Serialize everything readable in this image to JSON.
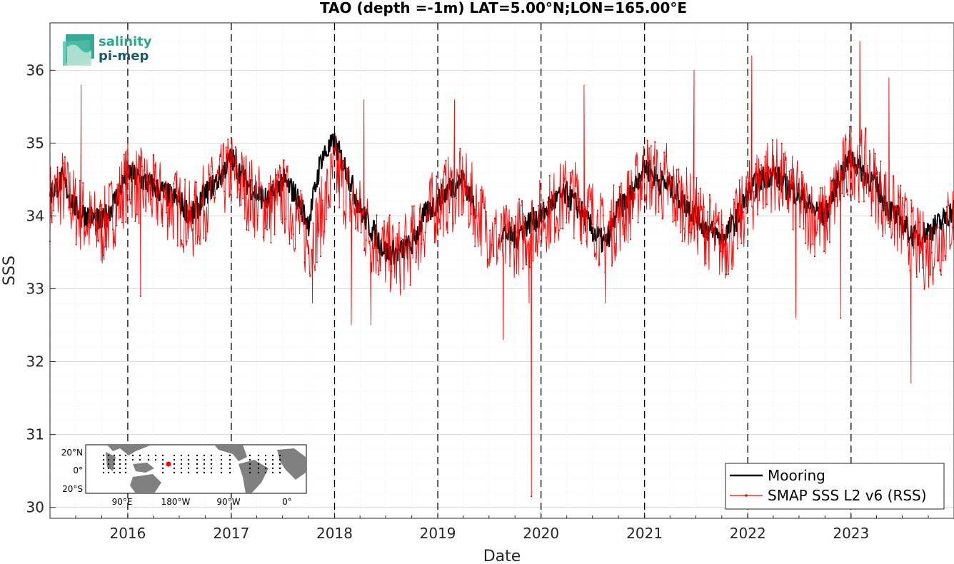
{
  "chart_data": {
    "type": "line",
    "title": "TAO (depth =-1m) LAT=5.00°N;LON=165.00°E",
    "xlabel": "Date",
    "ylabel": "SSS",
    "xlim": [
      "2015-04-01",
      "2023-12-31"
    ],
    "ylim": [
      29.85,
      36.65
    ],
    "x_ticks": [
      "2016",
      "2017",
      "2018",
      "2019",
      "2020",
      "2021",
      "2022",
      "2023"
    ],
    "y_ticks": [
      "30",
      "31",
      "32",
      "33",
      "34",
      "35",
      "36"
    ],
    "year_markers": [
      "2016-01-01",
      "2017-01-01",
      "2018-01-01",
      "2019-01-01",
      "2020-01-01",
      "2021-01-01",
      "2022-01-01",
      "2023-01-01"
    ],
    "grid": true,
    "legend_position": "bottom-right",
    "series": [
      {
        "name": "Mooring",
        "color": "#000000",
        "segments": [
          {
            "x": [
              "2015-04-01",
              "2015-05-15",
              "2015-07-01",
              "2015-08-15",
              "2015-10-01",
              "2015-11-15",
              "2016-01-01",
              "2016-02-15",
              "2016-04-01",
              "2016-05-15",
              "2016-07-01",
              "2016-08-15",
              "2016-10-01",
              "2016-11-15",
              "2017-01-01",
              "2017-02-15",
              "2017-04-01",
              "2017-05-15",
              "2017-07-01",
              "2017-08-15",
              "2017-10-01",
              "2017-11-15",
              "2018-01-01",
              "2018-02-15",
              "2018-04-01",
              "2018-05-15",
              "2018-07-01",
              "2018-08-15",
              "2018-10-01",
              "2018-11-15",
              "2019-01-01",
              "2019-02-15",
              "2019-04-01",
              "2019-05-15"
            ],
            "y": [
              34.3,
              34.5,
              34.1,
              34.0,
              33.9,
              34.2,
              34.6,
              34.5,
              34.4,
              34.3,
              34.2,
              34.0,
              34.3,
              34.5,
              34.8,
              34.5,
              34.3,
              34.2,
              34.5,
              34.3,
              33.9,
              34.8,
              35.0,
              34.6,
              34.1,
              33.8,
              33.5,
              33.5,
              33.6,
              34.0,
              34.2,
              34.4,
              34.5,
              34.1
            ]
          },
          {
            "x": [
              "2019-08-15",
              "2019-10-01",
              "2019-11-15",
              "2020-01-01",
              "2020-02-15",
              "2020-04-01",
              "2020-05-15",
              "2020-07-01",
              "2020-08-15",
              "2020-10-01",
              "2020-11-15",
              "2021-01-01",
              "2021-02-15",
              "2021-04-01",
              "2021-05-15",
              "2021-07-01",
              "2021-08-15",
              "2021-10-01",
              "2021-11-15",
              "2022-01-01",
              "2022-02-15",
              "2022-04-01",
              "2022-05-15",
              "2022-07-01",
              "2022-08-15",
              "2022-10-01",
              "2022-11-15",
              "2023-01-01",
              "2023-02-15",
              "2023-04-01",
              "2023-05-15",
              "2023-07-01",
              "2023-08-15",
              "2023-10-01",
              "2023-11-15",
              "2023-12-31"
            ],
            "y": [
              33.8,
              33.7,
              33.9,
              34.0,
              34.2,
              34.3,
              34.1,
              33.8,
              33.6,
              34.1,
              34.3,
              34.7,
              34.5,
              34.4,
              34.2,
              34.0,
              33.8,
              33.7,
              33.9,
              34.3,
              34.5,
              34.6,
              34.4,
              34.3,
              34.1,
              34.0,
              34.5,
              34.8,
              34.6,
              34.4,
              34.1,
              33.9,
              33.7,
              33.8,
              33.9,
              34.1
            ]
          }
        ]
      },
      {
        "name": "SMAP SSS L2 v6 (RSS)",
        "color": "#ff0000",
        "x": [
          "2015-04-01",
          "2015-05-15",
          "2015-07-01",
          "2015-08-15",
          "2015-10-01",
          "2015-11-15",
          "2016-01-01",
          "2016-02-15",
          "2016-04-01",
          "2016-05-15",
          "2016-07-01",
          "2016-08-15",
          "2016-10-01",
          "2016-11-15",
          "2017-01-01",
          "2017-02-15",
          "2017-04-01",
          "2017-05-15",
          "2017-07-01",
          "2017-08-15",
          "2017-10-01",
          "2017-11-15",
          "2018-01-01",
          "2018-02-15",
          "2018-04-01",
          "2018-05-15",
          "2018-07-01",
          "2018-08-15",
          "2018-10-01",
          "2018-11-15",
          "2019-01-01",
          "2019-02-15",
          "2019-04-01",
          "2019-05-15",
          "2019-07-01",
          "2019-08-15",
          "2019-10-01",
          "2019-11-15",
          "2020-01-01",
          "2020-02-15",
          "2020-04-01",
          "2020-05-15",
          "2020-07-01",
          "2020-08-15",
          "2020-10-01",
          "2020-11-15",
          "2021-01-01",
          "2021-02-15",
          "2021-04-01",
          "2021-05-15",
          "2021-07-01",
          "2021-08-15",
          "2021-10-01",
          "2021-11-15",
          "2022-01-01",
          "2022-02-15",
          "2022-04-01",
          "2022-05-15",
          "2022-07-01",
          "2022-08-15",
          "2022-10-01",
          "2022-11-15",
          "2023-01-01",
          "2023-02-15",
          "2023-04-01",
          "2023-05-15",
          "2023-07-01",
          "2023-08-15",
          "2023-10-01",
          "2023-11-15",
          "2023-12-31"
        ],
        "y": [
          34.2,
          34.4,
          34.1,
          33.9,
          33.8,
          34.1,
          34.5,
          34.4,
          34.3,
          34.2,
          34.1,
          33.9,
          34.2,
          34.4,
          34.6,
          34.4,
          34.2,
          34.1,
          34.3,
          34.0,
          33.6,
          34.0,
          34.6,
          34.3,
          34.0,
          33.7,
          33.5,
          33.4,
          33.6,
          33.9,
          34.2,
          34.3,
          34.4,
          34.1,
          33.8,
          33.6,
          33.7,
          33.8,
          34.0,
          34.1,
          34.3,
          34.2,
          34.0,
          33.7,
          34.0,
          34.2,
          34.6,
          34.5,
          34.3,
          34.2,
          34.0,
          33.8,
          33.6,
          33.8,
          34.2,
          34.5,
          34.6,
          34.4,
          34.2,
          34.0,
          33.9,
          34.4,
          34.8,
          34.7,
          34.4,
          34.1,
          33.9,
          33.6,
          33.5,
          33.7,
          34.0
        ],
        "spikes": [
          {
            "x": "2015-07-20",
            "y": 35.8
          },
          {
            "x": "2016-02-15",
            "y": 32.9
          },
          {
            "x": "2017-10-15",
            "y": 32.8
          },
          {
            "x": "2018-03-01",
            "y": 32.5
          },
          {
            "x": "2018-04-15",
            "y": 35.6
          },
          {
            "x": "2018-05-10",
            "y": 32.5
          },
          {
            "x": "2019-03-01",
            "y": 35.6
          },
          {
            "x": "2019-08-20",
            "y": 32.3
          },
          {
            "x": "2019-11-20",
            "y": 32.8
          },
          {
            "x": "2019-11-28",
            "y": 30.15
          },
          {
            "x": "2020-06-01",
            "y": 35.8
          },
          {
            "x": "2020-08-15",
            "y": 32.8
          },
          {
            "x": "2021-03-20",
            "y": 35.0
          },
          {
            "x": "2021-06-25",
            "y": 36.0
          },
          {
            "x": "2022-01-15",
            "y": 36.2
          },
          {
            "x": "2022-06-20",
            "y": 32.6
          },
          {
            "x": "2022-11-25",
            "y": 32.6
          },
          {
            "x": "2023-02-01",
            "y": 36.4
          },
          {
            "x": "2023-05-15",
            "y": 35.9
          },
          {
            "x": "2023-08-01",
            "y": 31.7
          }
        ]
      }
    ]
  },
  "logo": {
    "line1": "salinity",
    "line2": "pi-mep"
  },
  "inset_map": {
    "lat_labels": [
      "20°N",
      "0°",
      "20°S"
    ],
    "lon_labels": [
      "90°E",
      "180°W",
      "90°W",
      "0°"
    ],
    "station_color": "#ff0000"
  }
}
